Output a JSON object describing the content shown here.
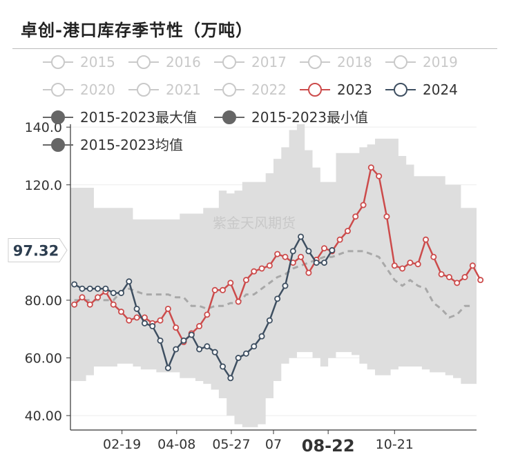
{
  "title": "卓创-港口库存季节性（万吨）",
  "watermark": "紫金天风期货",
  "current_value_label": "97.32",
  "colors": {
    "band": "#dedede",
    "avg": "#a8a8a8",
    "s2023": "#cc4b4b",
    "s2024": "#3e4f61",
    "inactive": "#c9c9c9"
  },
  "legend": [
    {
      "name": "2015",
      "state": "inactive",
      "icon": "circle-line-icon"
    },
    {
      "name": "2016",
      "state": "inactive",
      "icon": "circle-line-icon"
    },
    {
      "name": "2017",
      "state": "inactive",
      "icon": "circle-line-icon"
    },
    {
      "name": "2018",
      "state": "inactive",
      "icon": "circle-line-icon"
    },
    {
      "name": "2019",
      "state": "inactive",
      "icon": "circle-line-icon"
    },
    {
      "name": "2020",
      "state": "inactive",
      "icon": "circle-line-icon"
    },
    {
      "name": "2021",
      "state": "inactive",
      "icon": "circle-line-icon"
    },
    {
      "name": "2022",
      "state": "inactive",
      "icon": "circle-line-icon"
    },
    {
      "name": "2023",
      "state": "active",
      "icon": "circle-line-icon"
    },
    {
      "name": "2024",
      "state": "active",
      "icon": "circle-line-icon"
    },
    {
      "name": "2015-2023最大值",
      "state": "active",
      "icon": "filled-circle-line-icon"
    },
    {
      "name": "2015-2023最小值",
      "state": "active",
      "icon": "filled-circle-line-icon"
    },
    {
      "name": "2015-2023均值",
      "state": "active",
      "icon": "filled-circle-line-icon"
    }
  ],
  "chart_data": {
    "type": "line",
    "title": "卓创-港口库存季节性（万吨）",
    "ylim": [
      35,
      141
    ],
    "y_ticks": [
      "40.00",
      "60.00",
      "80.00",
      "120.0",
      "140.0"
    ],
    "y_tick_values": [
      40,
      60,
      80,
      120,
      140
    ],
    "x_ticks": [
      {
        "label": "02-19",
        "week": 6.6,
        "bold": false
      },
      {
        "label": "04-08",
        "week": 13.6,
        "bold": false
      },
      {
        "label": "05-27",
        "week": 20.6,
        "bold": false
      },
      {
        "label": "07",
        "week": 26.0,
        "bold": false
      },
      {
        "label": "08-22",
        "week": 33.0,
        "bold": true
      },
      {
        "label": "10-21",
        "week": 41.5,
        "bold": false
      }
    ],
    "x_range_weeks": [
      0,
      52
    ],
    "band_max": [
      119,
      119,
      119,
      112,
      112,
      112,
      112,
      112,
      108,
      108,
      108,
      108,
      108,
      108,
      110,
      110,
      110,
      112,
      112,
      118,
      117,
      118,
      121,
      121,
      121,
      124,
      129,
      133,
      139,
      141,
      132,
      126,
      121,
      121,
      131,
      131,
      131,
      133,
      134,
      136,
      136,
      136,
      130,
      127,
      123,
      123,
      123,
      123,
      120,
      120,
      112,
      112
    ],
    "band_min": [
      52,
      52,
      54,
      57,
      57,
      57,
      58,
      58,
      57,
      56,
      56,
      55,
      55,
      55,
      53,
      53,
      52,
      51,
      49,
      46,
      40,
      37,
      36,
      36,
      37,
      46,
      52,
      58,
      60,
      62,
      62,
      60,
      57,
      60,
      62,
      62,
      61,
      58,
      56,
      54,
      54,
      56,
      57,
      57,
      57,
      56,
      55,
      55,
      54,
      53,
      51,
      51
    ],
    "series": [
      {
        "name": "2015-2023均值",
        "style": "dashed",
        "values": [
          80,
          80,
          80,
          80,
          80,
          80,
          83,
          84,
          83,
          82,
          82,
          82,
          82,
          81,
          81,
          78,
          78,
          77,
          78,
          78,
          79,
          79,
          82,
          82,
          84,
          86,
          88,
          89,
          91,
          92,
          93,
          94,
          95,
          95,
          96,
          97,
          97,
          97,
          96,
          95,
          91,
          87,
          85,
          87,
          85,
          84,
          79,
          77,
          74,
          75,
          78,
          78
        ]
      },
      {
        "name": "2023",
        "values": [
          78.5,
          81,
          78.5,
          81,
          83,
          78.5,
          76,
          73,
          74,
          74,
          72,
          73,
          77,
          70.5,
          65.5,
          68.5,
          71,
          75,
          83.5,
          83.5,
          86,
          79.5,
          87,
          90,
          91,
          92,
          96,
          95,
          93,
          95,
          89.5,
          94,
          98,
          97,
          101,
          104,
          109,
          113,
          126,
          123,
          109,
          92,
          91,
          93,
          92.5,
          101,
          95,
          89,
          88,
          86,
          88,
          92,
          87
        ]
      },
      {
        "name": "2024",
        "values": [
          85.5,
          84,
          84,
          84,
          84,
          82.5,
          82.5,
          86.5,
          77,
          72,
          71,
          66,
          56.5,
          63,
          66,
          68,
          63,
          64,
          62,
          57,
          53,
          60,
          61.5,
          64,
          67.5,
          73,
          80.5,
          85,
          97,
          102,
          97,
          93,
          93,
          97.32
        ]
      }
    ],
    "current_value": 97.32,
    "legend_placement": "top"
  }
}
